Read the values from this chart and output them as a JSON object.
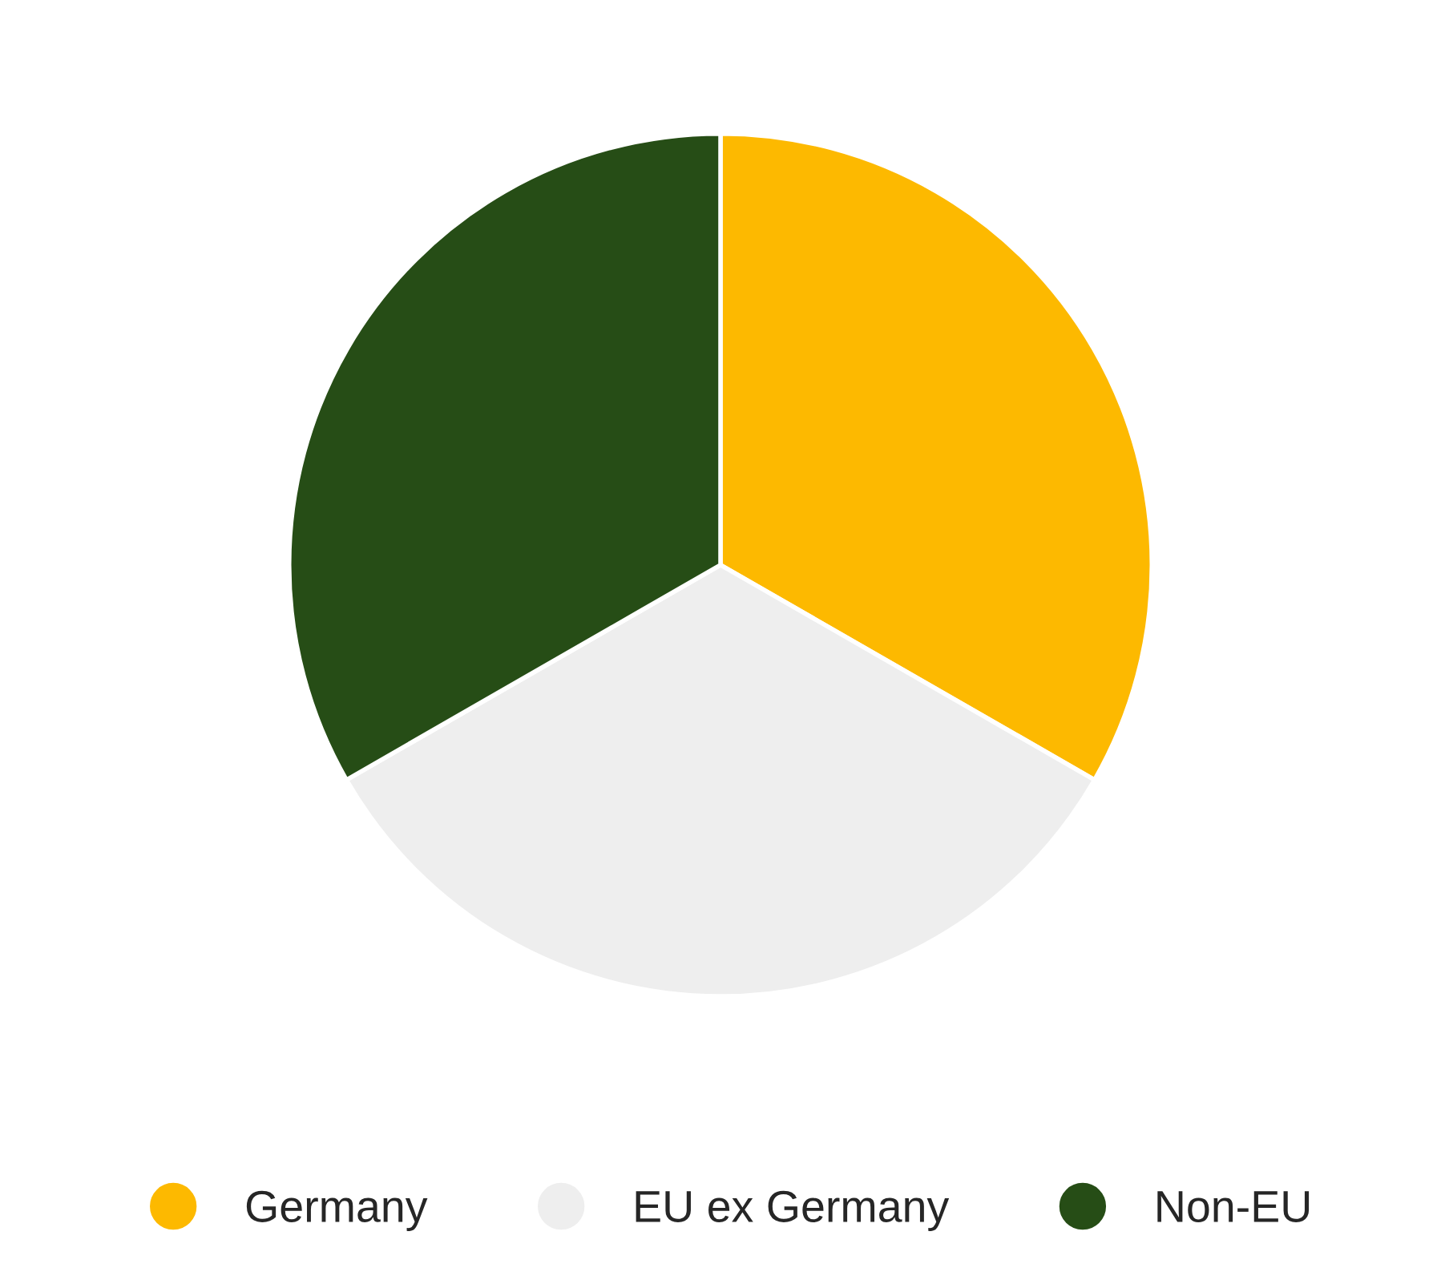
{
  "chart_data": {
    "type": "pie",
    "categories": [
      "Germany",
      "EU ex Germany",
      "Non-EU"
    ],
    "values": [
      33.3,
      33.4,
      33.3
    ],
    "colors": [
      "#fdb900",
      "#eeeeee",
      "#264d16"
    ],
    "legend": "bottom"
  }
}
